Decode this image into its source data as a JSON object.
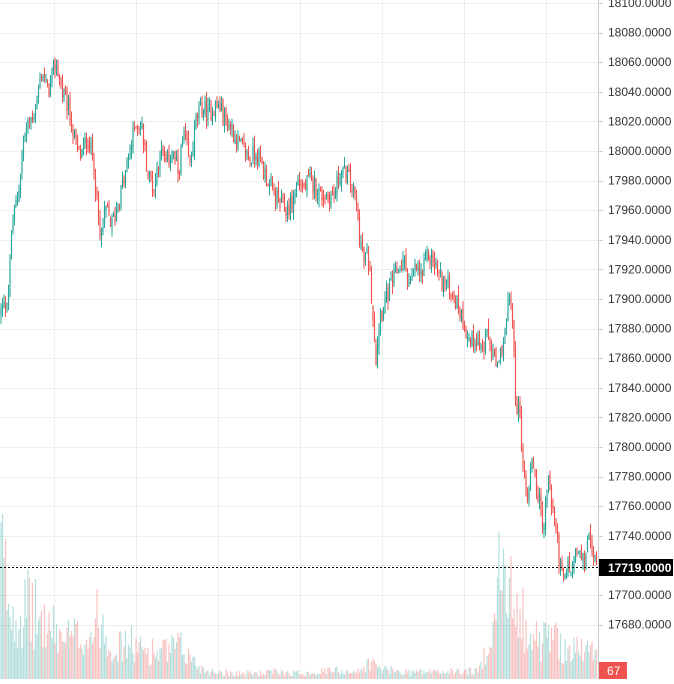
{
  "chart_data": {
    "type": "candlestick",
    "y_axis_position": "right",
    "ylim": [
      17650,
      18100
    ],
    "y_ticks": [
      "17680.0000",
      "17700.0000",
      "17720.0000",
      "17740.0000",
      "17760.0000",
      "17780.0000",
      "17800.0000",
      "17820.0000",
      "17840.0000",
      "17860.0000",
      "17880.0000",
      "17900.0000",
      "17920.0000",
      "17940.0000",
      "17960.0000",
      "17980.0000",
      "18000.0000",
      "18020.0000",
      "18040.0000",
      "18060.0000",
      "18080.0000",
      "18100.0000"
    ],
    "y_tick_values": [
      17680,
      17700,
      17720,
      17740,
      17760,
      17780,
      17800,
      17820,
      17840,
      17860,
      17880,
      17900,
      17920,
      17940,
      17960,
      17980,
      18000,
      18020,
      18040,
      18060,
      18080,
      18100
    ],
    "last_price": 17719,
    "last_price_label": "17719.0000",
    "last_volume_label": "67",
    "price_path": [
      [
        0,
        17890
      ],
      [
        8,
        17900
      ],
      [
        12,
        17950
      ],
      [
        18,
        17970
      ],
      [
        24,
        18010
      ],
      [
        30,
        18020
      ],
      [
        36,
        18030
      ],
      [
        42,
        18055
      ],
      [
        48,
        18040
      ],
      [
        56,
        18060
      ],
      [
        62,
        18040
      ],
      [
        68,
        18030
      ],
      [
        74,
        18010
      ],
      [
        80,
        17995
      ],
      [
        88,
        18010
      ],
      [
        94,
        17990
      ],
      [
        100,
        17940
      ],
      [
        106,
        17960
      ],
      [
        112,
        17950
      ],
      [
        118,
        17965
      ],
      [
        124,
        17980
      ],
      [
        130,
        18000
      ],
      [
        136,
        18020
      ],
      [
        142,
        18015
      ],
      [
        148,
        17985
      ],
      [
        154,
        17975
      ],
      [
        160,
        18000
      ],
      [
        166,
        17990
      ],
      [
        172,
        18000
      ],
      [
        178,
        17985
      ],
      [
        184,
        18010
      ],
      [
        190,
        17990
      ],
      [
        196,
        18020
      ],
      [
        202,
        18030
      ],
      [
        208,
        18025
      ],
      [
        214,
        18030
      ],
      [
        220,
        18030
      ],
      [
        226,
        18020
      ],
      [
        232,
        18015
      ],
      [
        238,
        18005
      ],
      [
        244,
        18000
      ],
      [
        250,
        17995
      ],
      [
        256,
        18000
      ],
      [
        262,
        17990
      ],
      [
        268,
        17980
      ],
      [
        274,
        17970
      ],
      [
        280,
        17965
      ],
      [
        286,
        17960
      ],
      [
        292,
        17965
      ],
      [
        298,
        17980
      ],
      [
        304,
        17975
      ],
      [
        310,
        17980
      ],
      [
        316,
        17975
      ],
      [
        322,
        17970
      ],
      [
        328,
        17970
      ],
      [
        334,
        17970
      ],
      [
        340,
        17985
      ],
      [
        346,
        17985
      ],
      [
        352,
        17975
      ],
      [
        356,
        17965
      ],
      [
        360,
        17940
      ],
      [
        364,
        17925
      ],
      [
        368,
        17930
      ],
      [
        372,
        17900
      ],
      [
        376,
        17860
      ],
      [
        380,
        17890
      ],
      [
        386,
        17900
      ],
      [
        392,
        17910
      ],
      [
        398,
        17920
      ],
      [
        404,
        17925
      ],
      [
        410,
        17910
      ],
      [
        416,
        17920
      ],
      [
        422,
        17915
      ],
      [
        428,
        17930
      ],
      [
        434,
        17925
      ],
      [
        440,
        17915
      ],
      [
        446,
        17910
      ],
      [
        452,
        17905
      ],
      [
        458,
        17895
      ],
      [
        464,
        17885
      ],
      [
        470,
        17870
      ],
      [
        476,
        17875
      ],
      [
        482,
        17865
      ],
      [
        488,
        17875
      ],
      [
        494,
        17860
      ],
      [
        498,
        17850
      ],
      [
        502,
        17870
      ],
      [
        506,
        17880
      ],
      [
        510,
        17905
      ],
      [
        512,
        17890
      ],
      [
        516,
        17830
      ],
      [
        520,
        17820
      ],
      [
        524,
        17780
      ],
      [
        528,
        17765
      ],
      [
        532,
        17795
      ],
      [
        536,
        17775
      ],
      [
        540,
        17760
      ],
      [
        544,
        17745
      ],
      [
        548,
        17780
      ],
      [
        552,
        17760
      ],
      [
        556,
        17745
      ],
      [
        560,
        17720
      ],
      [
        564,
        17705
      ],
      [
        568,
        17720
      ],
      [
        572,
        17715
      ],
      [
        576,
        17730
      ],
      [
        580,
        17725
      ],
      [
        584,
        17720
      ],
      [
        588,
        17740
      ],
      [
        592,
        17730
      ],
      [
        596,
        17719
      ]
    ],
    "volume_profile": [
      [
        0,
        0.95
      ],
      [
        10,
        0.5
      ],
      [
        20,
        0.45
      ],
      [
        30,
        0.5
      ],
      [
        40,
        0.4
      ],
      [
        50,
        0.35
      ],
      [
        60,
        0.3
      ],
      [
        70,
        0.28
      ],
      [
        80,
        0.3
      ],
      [
        90,
        0.3
      ],
      [
        100,
        0.45
      ],
      [
        110,
        0.25
      ],
      [
        120,
        0.22
      ],
      [
        130,
        0.25
      ],
      [
        140,
        0.2
      ],
      [
        150,
        0.2
      ],
      [
        160,
        0.18
      ],
      [
        170,
        0.2
      ],
      [
        180,
        0.22
      ],
      [
        190,
        0.15
      ],
      [
        200,
        0.08
      ],
      [
        210,
        0.05
      ],
      [
        220,
        0.05
      ],
      [
        240,
        0.04
      ],
      [
        260,
        0.04
      ],
      [
        280,
        0.05
      ],
      [
        300,
        0.04
      ],
      [
        320,
        0.05
      ],
      [
        340,
        0.06
      ],
      [
        360,
        0.05
      ],
      [
        370,
        0.12
      ],
      [
        380,
        0.07
      ],
      [
        400,
        0.05
      ],
      [
        420,
        0.05
      ],
      [
        440,
        0.05
      ],
      [
        460,
        0.05
      ],
      [
        480,
        0.06
      ],
      [
        494,
        0.45
      ],
      [
        500,
        0.75
      ],
      [
        506,
        0.6
      ],
      [
        512,
        0.55
      ],
      [
        518,
        0.65
      ],
      [
        524,
        0.4
      ],
      [
        530,
        0.3
      ],
      [
        540,
        0.25
      ],
      [
        550,
        0.3
      ],
      [
        560,
        0.25
      ],
      [
        570,
        0.2
      ],
      [
        580,
        0.2
      ],
      [
        590,
        0.2
      ],
      [
        598,
        0.18
      ]
    ],
    "grid": true,
    "colors": {
      "up": "#26a69a",
      "down": "#ef5350",
      "grid": "#eeeeee",
      "axis_border": "#cccccc",
      "last_price_badge": "#000000",
      "volume_badge": "#ef5350"
    }
  }
}
